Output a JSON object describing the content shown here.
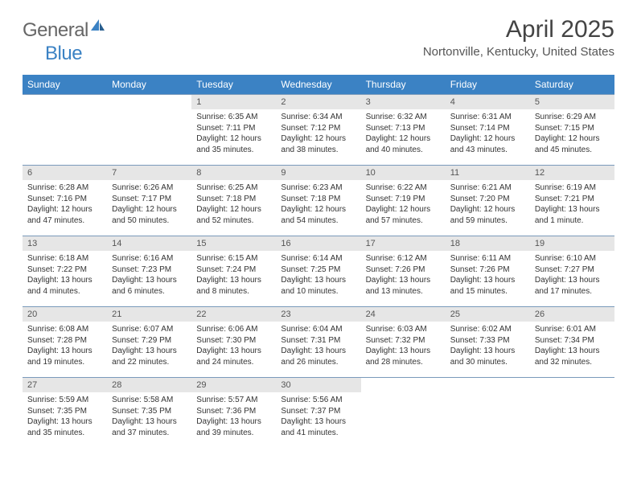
{
  "logo": {
    "general": "General",
    "blue": "Blue"
  },
  "title": "April 2025",
  "location": "Nortonville, Kentucky, United States",
  "colors": {
    "header_bg": "#3b82c4",
    "header_text": "#ffffff",
    "daynum_bg": "#e6e6e6",
    "row_border": "#7a9abb",
    "logo_gray": "#666666",
    "logo_blue": "#3b82c4"
  },
  "day_headers": [
    "Sunday",
    "Monday",
    "Tuesday",
    "Wednesday",
    "Thursday",
    "Friday",
    "Saturday"
  ],
  "weeks": [
    [
      null,
      null,
      {
        "n": "1",
        "sr": "Sunrise: 6:35 AM",
        "ss": "Sunset: 7:11 PM",
        "d1": "Daylight: 12 hours",
        "d2": "and 35 minutes."
      },
      {
        "n": "2",
        "sr": "Sunrise: 6:34 AM",
        "ss": "Sunset: 7:12 PM",
        "d1": "Daylight: 12 hours",
        "d2": "and 38 minutes."
      },
      {
        "n": "3",
        "sr": "Sunrise: 6:32 AM",
        "ss": "Sunset: 7:13 PM",
        "d1": "Daylight: 12 hours",
        "d2": "and 40 minutes."
      },
      {
        "n": "4",
        "sr": "Sunrise: 6:31 AM",
        "ss": "Sunset: 7:14 PM",
        "d1": "Daylight: 12 hours",
        "d2": "and 43 minutes."
      },
      {
        "n": "5",
        "sr": "Sunrise: 6:29 AM",
        "ss": "Sunset: 7:15 PM",
        "d1": "Daylight: 12 hours",
        "d2": "and 45 minutes."
      }
    ],
    [
      {
        "n": "6",
        "sr": "Sunrise: 6:28 AM",
        "ss": "Sunset: 7:16 PM",
        "d1": "Daylight: 12 hours",
        "d2": "and 47 minutes."
      },
      {
        "n": "7",
        "sr": "Sunrise: 6:26 AM",
        "ss": "Sunset: 7:17 PM",
        "d1": "Daylight: 12 hours",
        "d2": "and 50 minutes."
      },
      {
        "n": "8",
        "sr": "Sunrise: 6:25 AM",
        "ss": "Sunset: 7:18 PM",
        "d1": "Daylight: 12 hours",
        "d2": "and 52 minutes."
      },
      {
        "n": "9",
        "sr": "Sunrise: 6:23 AM",
        "ss": "Sunset: 7:18 PM",
        "d1": "Daylight: 12 hours",
        "d2": "and 54 minutes."
      },
      {
        "n": "10",
        "sr": "Sunrise: 6:22 AM",
        "ss": "Sunset: 7:19 PM",
        "d1": "Daylight: 12 hours",
        "d2": "and 57 minutes."
      },
      {
        "n": "11",
        "sr": "Sunrise: 6:21 AM",
        "ss": "Sunset: 7:20 PM",
        "d1": "Daylight: 12 hours",
        "d2": "and 59 minutes."
      },
      {
        "n": "12",
        "sr": "Sunrise: 6:19 AM",
        "ss": "Sunset: 7:21 PM",
        "d1": "Daylight: 13 hours",
        "d2": "and 1 minute."
      }
    ],
    [
      {
        "n": "13",
        "sr": "Sunrise: 6:18 AM",
        "ss": "Sunset: 7:22 PM",
        "d1": "Daylight: 13 hours",
        "d2": "and 4 minutes."
      },
      {
        "n": "14",
        "sr": "Sunrise: 6:16 AM",
        "ss": "Sunset: 7:23 PM",
        "d1": "Daylight: 13 hours",
        "d2": "and 6 minutes."
      },
      {
        "n": "15",
        "sr": "Sunrise: 6:15 AM",
        "ss": "Sunset: 7:24 PM",
        "d1": "Daylight: 13 hours",
        "d2": "and 8 minutes."
      },
      {
        "n": "16",
        "sr": "Sunrise: 6:14 AM",
        "ss": "Sunset: 7:25 PM",
        "d1": "Daylight: 13 hours",
        "d2": "and 10 minutes."
      },
      {
        "n": "17",
        "sr": "Sunrise: 6:12 AM",
        "ss": "Sunset: 7:26 PM",
        "d1": "Daylight: 13 hours",
        "d2": "and 13 minutes."
      },
      {
        "n": "18",
        "sr": "Sunrise: 6:11 AM",
        "ss": "Sunset: 7:26 PM",
        "d1": "Daylight: 13 hours",
        "d2": "and 15 minutes."
      },
      {
        "n": "19",
        "sr": "Sunrise: 6:10 AM",
        "ss": "Sunset: 7:27 PM",
        "d1": "Daylight: 13 hours",
        "d2": "and 17 minutes."
      }
    ],
    [
      {
        "n": "20",
        "sr": "Sunrise: 6:08 AM",
        "ss": "Sunset: 7:28 PM",
        "d1": "Daylight: 13 hours",
        "d2": "and 19 minutes."
      },
      {
        "n": "21",
        "sr": "Sunrise: 6:07 AM",
        "ss": "Sunset: 7:29 PM",
        "d1": "Daylight: 13 hours",
        "d2": "and 22 minutes."
      },
      {
        "n": "22",
        "sr": "Sunrise: 6:06 AM",
        "ss": "Sunset: 7:30 PM",
        "d1": "Daylight: 13 hours",
        "d2": "and 24 minutes."
      },
      {
        "n": "23",
        "sr": "Sunrise: 6:04 AM",
        "ss": "Sunset: 7:31 PM",
        "d1": "Daylight: 13 hours",
        "d2": "and 26 minutes."
      },
      {
        "n": "24",
        "sr": "Sunrise: 6:03 AM",
        "ss": "Sunset: 7:32 PM",
        "d1": "Daylight: 13 hours",
        "d2": "and 28 minutes."
      },
      {
        "n": "25",
        "sr": "Sunrise: 6:02 AM",
        "ss": "Sunset: 7:33 PM",
        "d1": "Daylight: 13 hours",
        "d2": "and 30 minutes."
      },
      {
        "n": "26",
        "sr": "Sunrise: 6:01 AM",
        "ss": "Sunset: 7:34 PM",
        "d1": "Daylight: 13 hours",
        "d2": "and 32 minutes."
      }
    ],
    [
      {
        "n": "27",
        "sr": "Sunrise: 5:59 AM",
        "ss": "Sunset: 7:35 PM",
        "d1": "Daylight: 13 hours",
        "d2": "and 35 minutes."
      },
      {
        "n": "28",
        "sr": "Sunrise: 5:58 AM",
        "ss": "Sunset: 7:35 PM",
        "d1": "Daylight: 13 hours",
        "d2": "and 37 minutes."
      },
      {
        "n": "29",
        "sr": "Sunrise: 5:57 AM",
        "ss": "Sunset: 7:36 PM",
        "d1": "Daylight: 13 hours",
        "d2": "and 39 minutes."
      },
      {
        "n": "30",
        "sr": "Sunrise: 5:56 AM",
        "ss": "Sunset: 7:37 PM",
        "d1": "Daylight: 13 hours",
        "d2": "and 41 minutes."
      },
      null,
      null,
      null
    ]
  ]
}
